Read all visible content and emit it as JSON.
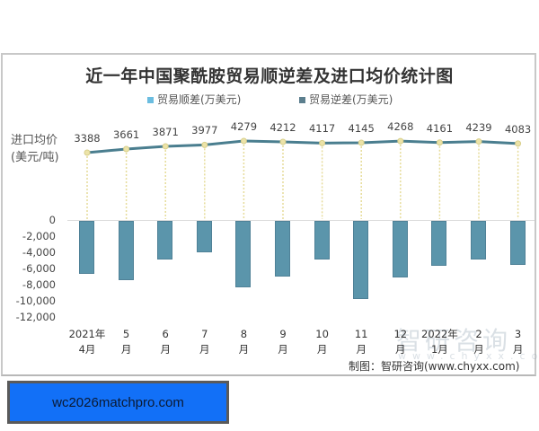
{
  "chart_data": {
    "type": "bar+line",
    "title": "近一年中国聚酰胺贸易顺逆差及进口均价统计图",
    "categories": [
      "2021年4月",
      "5月",
      "6月",
      "7月",
      "8月",
      "9月",
      "10月",
      "11月",
      "12月",
      "2022年1月",
      "2月",
      "3月"
    ],
    "category_labels": [
      {
        "top": "2021年",
        "bottom": "4月"
      },
      {
        "top": "5",
        "bottom": "月"
      },
      {
        "top": "6",
        "bottom": "月"
      },
      {
        "top": "7",
        "bottom": "月"
      },
      {
        "top": "8",
        "bottom": "月"
      },
      {
        "top": "9",
        "bottom": "月"
      },
      {
        "top": "10",
        "bottom": "月"
      },
      {
        "top": "11",
        "bottom": "月"
      },
      {
        "top": "12",
        "bottom": "月"
      },
      {
        "top": "2022年",
        "bottom": "1月"
      },
      {
        "top": "2",
        "bottom": "月"
      },
      {
        "top": "3",
        "bottom": "月"
      }
    ],
    "series": [
      {
        "name": "贸易顺差(万美元)",
        "type": "bar",
        "color": "#7fc4e0",
        "values": [
          0,
          0,
          0,
          0,
          0,
          0,
          0,
          0,
          0,
          0,
          0,
          0
        ]
      },
      {
        "name": "贸易逆差(万美元)",
        "type": "bar",
        "color": "#5b95ab",
        "values": [
          -6600,
          -7300,
          -4800,
          -3900,
          -8200,
          -6850,
          -4800,
          -9700,
          -7050,
          -5600,
          -4800,
          -5400
        ]
      },
      {
        "name": "进口均价(美元/吨)",
        "type": "line",
        "color": "#4a7e8f",
        "values": [
          3388,
          3661,
          3871,
          3977,
          4279,
          4212,
          4117,
          4145,
          4268,
          4161,
          4239,
          4083
        ]
      }
    ],
    "yaxis": {
      "ticks": [
        "0",
        "-2,000",
        "-4,000",
        "-6,000",
        "-8,000",
        "-10,000",
        "-12,000"
      ],
      "ylim": [
        -12000,
        0
      ]
    },
    "y2_label_lines": [
      "进口均价",
      "(美元/吨)"
    ],
    "legend": {
      "position": "top",
      "items": [
        "贸易顺差(万美元)",
        "贸易逆差(万美元)"
      ]
    },
    "grid": false
  },
  "legend": {
    "surplus": {
      "label": "贸易顺差(万美元)",
      "color": "#6bbde0"
    },
    "deficit": {
      "label": "贸易逆差(万美元)",
      "color": "#5c7f8e"
    }
  },
  "y2": {
    "line1": "进口均价",
    "line2": "(美元/吨)"
  },
  "watermark": {
    "text": "智研咨询",
    "sub": "www.chyxx.com"
  },
  "credit": "制图：智研咨询(www.chyxx.com)",
  "banner": {
    "text": "wc2026matchpro.com"
  }
}
